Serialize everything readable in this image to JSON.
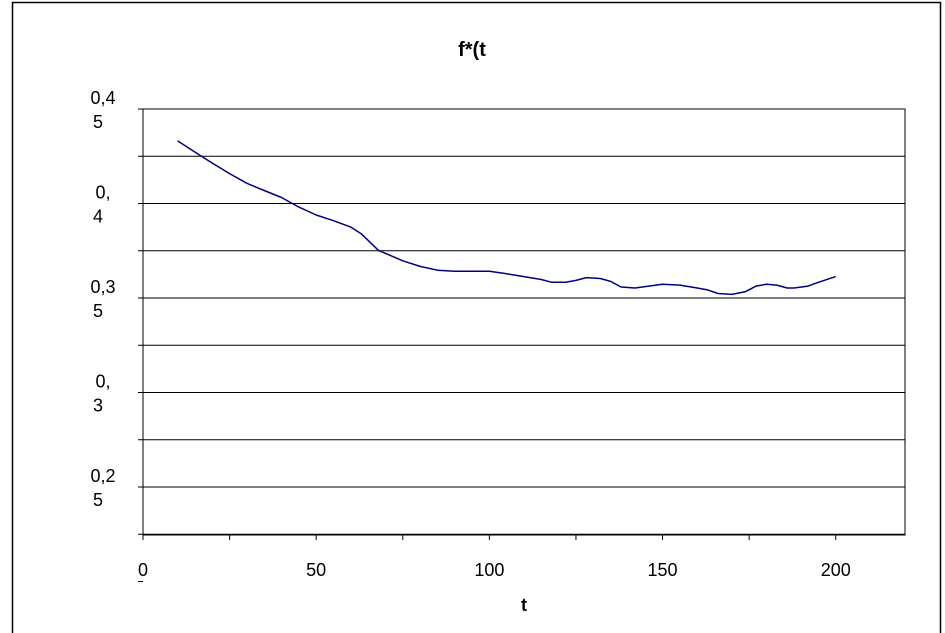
{
  "chart_data": {
    "type": "line",
    "title": "f*(t",
    "xlabel": "t",
    "ylabel": "",
    "xlim": [
      0,
      220
    ],
    "ylim": [
      0.2,
      0.45
    ],
    "grid": true,
    "legend": "none",
    "x_ticks": [
      {
        "value": 0,
        "label": "0"
      },
      {
        "value": 50,
        "label": "50"
      },
      {
        "value": 100,
        "label": "100"
      },
      {
        "value": 150,
        "label": "150"
      },
      {
        "value": 200,
        "label": "200"
      }
    ],
    "y_ticks": [
      {
        "value": 0.45,
        "lines": [
          "0,4",
          "5"
        ]
      },
      {
        "value": 0.4,
        "lines": [
          "0,",
          "4"
        ]
      },
      {
        "value": 0.35,
        "lines": [
          "0,3",
          "5"
        ]
      },
      {
        "value": 0.3,
        "lines": [
          "0,",
          "3"
        ]
      },
      {
        "value": 0.25,
        "lines": [
          "0,2",
          "5"
        ]
      }
    ],
    "gridlines": [
      0.45,
      0.425,
      0.4,
      0.375,
      0.35,
      0.325,
      0.3,
      0.275,
      0.25,
      0.225
    ],
    "line_color": "#000080",
    "series": [
      {
        "x": [
          10,
          15,
          20,
          25,
          30,
          35,
          40,
          45,
          50,
          55,
          60,
          63,
          68,
          75,
          80,
          85,
          90,
          95,
          100,
          105,
          110,
          115,
          118,
          122,
          125,
          128,
          132,
          135,
          138,
          142,
          146,
          150,
          155,
          160,
          163,
          166,
          170,
          174,
          177,
          180,
          183,
          186,
          188,
          192,
          195,
          200
        ],
        "y": [
          0.4331,
          0.4272,
          0.4214,
          0.4158,
          0.4107,
          0.4069,
          0.4032,
          0.3981,
          0.3939,
          0.3909,
          0.3875,
          0.384,
          0.3752,
          0.3697,
          0.3667,
          0.3647,
          0.3642,
          0.3642,
          0.3642,
          0.3628,
          0.3613,
          0.3598,
          0.3583,
          0.3583,
          0.3593,
          0.3608,
          0.3603,
          0.3588,
          0.3558,
          0.3553,
          0.3563,
          0.3573,
          0.3568,
          0.3553,
          0.3543,
          0.3524,
          0.3519,
          0.3534,
          0.3563,
          0.3573,
          0.3568,
          0.3553,
          0.3553,
          0.3563,
          0.3583,
          0.3613
        ]
      }
    ]
  }
}
